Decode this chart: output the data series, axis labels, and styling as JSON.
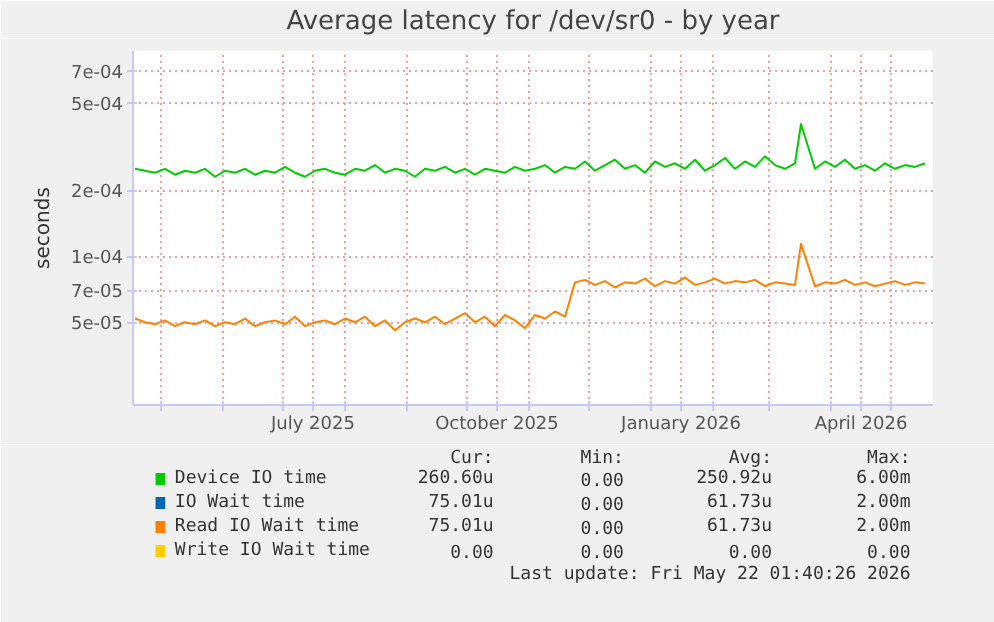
{
  "chart_data": {
    "type": "line",
    "title": "Average latency for /dev/sr0 - by year",
    "ylabel": "seconds",
    "x": [
      "2025-04-18",
      "2025-04-23",
      "2025-04-28",
      "2025-05-03",
      "2025-05-08",
      "2025-05-13",
      "2025-05-18",
      "2025-05-23",
      "2025-05-28",
      "2025-06-02",
      "2025-06-07",
      "2025-06-12",
      "2025-06-17",
      "2025-06-22",
      "2025-06-27",
      "2025-07-02",
      "2025-07-07",
      "2025-07-12",
      "2025-07-17",
      "2025-07-22",
      "2025-07-27",
      "2025-08-01",
      "2025-08-06",
      "2025-08-11",
      "2025-08-16",
      "2025-08-21",
      "2025-08-26",
      "2025-08-31",
      "2025-09-05",
      "2025-09-10",
      "2025-09-15",
      "2025-09-20",
      "2025-09-25",
      "2025-09-30",
      "2025-10-05",
      "2025-10-10",
      "2025-10-15",
      "2025-10-20",
      "2025-10-25",
      "2025-10-30",
      "2025-11-04",
      "2025-11-09",
      "2025-11-14",
      "2025-11-19",
      "2025-11-24",
      "2025-11-29",
      "2025-12-04",
      "2025-12-09",
      "2025-12-14",
      "2025-12-19",
      "2025-12-24",
      "2025-12-29",
      "2026-01-03",
      "2026-01-08",
      "2026-01-13",
      "2026-01-18",
      "2026-01-23",
      "2026-01-28",
      "2026-02-02",
      "2026-02-07",
      "2026-02-12",
      "2026-02-17",
      "2026-02-22",
      "2026-02-27",
      "2026-03-04",
      "2026-03-09",
      "2026-03-14",
      "2026-03-17",
      "2026-03-24",
      "2026-03-29",
      "2026-04-03",
      "2026-04-08",
      "2026-04-13",
      "2026-04-18",
      "2026-04-23",
      "2026-04-28",
      "2026-05-03",
      "2026-05-08",
      "2026-05-13",
      "2026-05-18"
    ],
    "series": [
      {
        "name": "Device IO time",
        "color": "#00cc00",
        "values": [
          0.00025,
          0.000245,
          0.00024,
          0.00025,
          0.000235,
          0.000245,
          0.00024,
          0.00025,
          0.00023,
          0.000245,
          0.00024,
          0.00025,
          0.000235,
          0.000245,
          0.00024,
          0.000255,
          0.00024,
          0.00023,
          0.000245,
          0.00025,
          0.00024,
          0.000235,
          0.00025,
          0.000245,
          0.00026,
          0.00024,
          0.00025,
          0.000245,
          0.00023,
          0.00025,
          0.000245,
          0.000255,
          0.00024,
          0.00025,
          0.000235,
          0.00025,
          0.000245,
          0.00024,
          0.000255,
          0.000245,
          0.00025,
          0.00026,
          0.00024,
          0.000255,
          0.00025,
          0.00027,
          0.000245,
          0.00026,
          0.000275,
          0.00025,
          0.00026,
          0.00024,
          0.00027,
          0.000255,
          0.000265,
          0.00025,
          0.000275,
          0.000245,
          0.00026,
          0.00028,
          0.00025,
          0.00027,
          0.000255,
          0.000285,
          0.00026,
          0.00025,
          0.000265,
          0.0004,
          0.00025,
          0.00027,
          0.000255,
          0.000275,
          0.00025,
          0.00026,
          0.000245,
          0.000265,
          0.00025,
          0.00026,
          0.000255,
          0.000265
        ]
      },
      {
        "name": "IO Wait time",
        "color": "#0066b3",
        "values": [
          null,
          null,
          null,
          null,
          null,
          null,
          null,
          null,
          null,
          null,
          null,
          null,
          null,
          null,
          null,
          null,
          null,
          null,
          null,
          null,
          null,
          null,
          null,
          null,
          null,
          null,
          null,
          null,
          null,
          null,
          null,
          null,
          null,
          null,
          null,
          null,
          null,
          null,
          null,
          null,
          null,
          null,
          null,
          null,
          null,
          null,
          null,
          null,
          null,
          null,
          null,
          null,
          null,
          null,
          null,
          null,
          null,
          null,
          null,
          null,
          null,
          null,
          null,
          null,
          null,
          null,
          null,
          null,
          null,
          null,
          null,
          null,
          null,
          null,
          null,
          null,
          null,
          null,
          null,
          null
        ]
      },
      {
        "name": "Read IO Wait time",
        "color": "#ff8000",
        "values": [
          5.2e-05,
          5e-05,
          4.9e-05,
          5.1e-05,
          4.8e-05,
          5e-05,
          4.9e-05,
          5.1e-05,
          4.8e-05,
          5e-05,
          4.9e-05,
          5.2e-05,
          4.8e-05,
          5e-05,
          5.1e-05,
          4.9e-05,
          5.3e-05,
          4.8e-05,
          5e-05,
          5.1e-05,
          4.9e-05,
          5.2e-05,
          5e-05,
          5.3e-05,
          4.8e-05,
          5.1e-05,
          4.6e-05,
          5e-05,
          5.2e-05,
          5e-05,
          5.3e-05,
          4.9e-05,
          5.2e-05,
          5.5e-05,
          5e-05,
          5.3e-05,
          4.8e-05,
          5.4e-05,
          5.1e-05,
          4.7e-05,
          5.4e-05,
          5.2e-05,
          5.6e-05,
          5.3e-05,
          7.6e-05,
          7.8e-05,
          7.4e-05,
          7.7e-05,
          7.2e-05,
          7.6e-05,
          7.5e-05,
          7.9e-05,
          7.3e-05,
          7.7e-05,
          7.5e-05,
          8e-05,
          7.4e-05,
          7.6e-05,
          7.9e-05,
          7.5e-05,
          7.7e-05,
          7.6e-05,
          7.8e-05,
          7.3e-05,
          7.6e-05,
          7.5e-05,
          7.4e-05,
          0.000114,
          7.3e-05,
          7.6e-05,
          7.5e-05,
          7.8e-05,
          7.4e-05,
          7.6e-05,
          7.3e-05,
          7.5e-05,
          7.7e-05,
          7.4e-05,
          7.6e-05,
          7.5e-05
        ]
      },
      {
        "name": "Write IO Wait time",
        "color": "#ffcc00",
        "values": [
          null,
          null,
          null,
          null,
          null,
          null,
          null,
          null,
          null,
          null,
          null,
          null,
          null,
          null,
          null,
          null,
          null,
          null,
          null,
          null,
          null,
          null,
          null,
          null,
          null,
          null,
          null,
          null,
          null,
          null,
          null,
          null,
          null,
          null,
          null,
          null,
          null,
          null,
          null,
          null,
          null,
          null,
          null,
          null,
          null,
          null,
          null,
          null,
          null,
          null,
          null,
          null,
          null,
          null,
          null,
          null,
          null,
          null,
          null,
          null,
          null,
          null,
          null,
          null,
          null,
          null,
          null,
          null,
          null,
          null,
          null,
          null,
          null,
          null,
          null,
          null,
          null,
          null,
          null,
          null
        ]
      }
    ],
    "xlim": [
      "2025-04-17",
      "2026-05-22"
    ],
    "xticks": [
      {
        "value": "2025-05-01",
        "label": null
      },
      {
        "value": "2025-06-01",
        "label": null
      },
      {
        "value": "2025-07-01",
        "label": null
      },
      {
        "value": "2025-07-16",
        "label": "July 2025"
      },
      {
        "value": "2025-08-01",
        "label": null
      },
      {
        "value": "2025-09-01",
        "label": null
      },
      {
        "value": "2025-10-01",
        "label": null
      },
      {
        "value": "2025-10-16",
        "label": "October 2025"
      },
      {
        "value": "2025-11-01",
        "label": null
      },
      {
        "value": "2025-12-01",
        "label": null
      },
      {
        "value": "2026-01-01",
        "label": null
      },
      {
        "value": "2026-01-16",
        "label": "January 2026"
      },
      {
        "value": "2026-02-01",
        "label": null
      },
      {
        "value": "2026-03-01",
        "label": null
      },
      {
        "value": "2026-04-01",
        "label": null
      },
      {
        "value": "2026-04-16",
        "label": "April 2026"
      },
      {
        "value": "2026-05-01",
        "label": null
      }
    ],
    "ylim": [
      2.1e-05,
      0.00086
    ],
    "yticks": [
      {
        "value": 5e-05,
        "label": "5e-05"
      },
      {
        "value": 7e-05,
        "label": "7e-05"
      },
      {
        "value": 0.0001,
        "label": "1e-04"
      },
      {
        "value": 0.0002,
        "label": "2e-04"
      },
      {
        "value": 0.0005,
        "label": "5e-04"
      },
      {
        "value": 0.0007,
        "label": "7e-04"
      }
    ],
    "log": "y",
    "grid": true,
    "legend": "bottom",
    "line_style": "solid",
    "marker": "none",
    "annotations": [
      "Cur:",
      "Min:",
      "Avg:",
      "Max:",
      "260.60u",
      "0.00",
      "250.92u",
      "6.00m",
      "75.01u",
      "0.00",
      "61.73u",
      "2.00m",
      "75.01u",
      "0.00",
      "61.73u",
      "2.00m",
      "0.00",
      "0.00",
      "0.00",
      "0.00",
      "Last update: Fri May 22 01:40:26 2026"
    ]
  }
}
